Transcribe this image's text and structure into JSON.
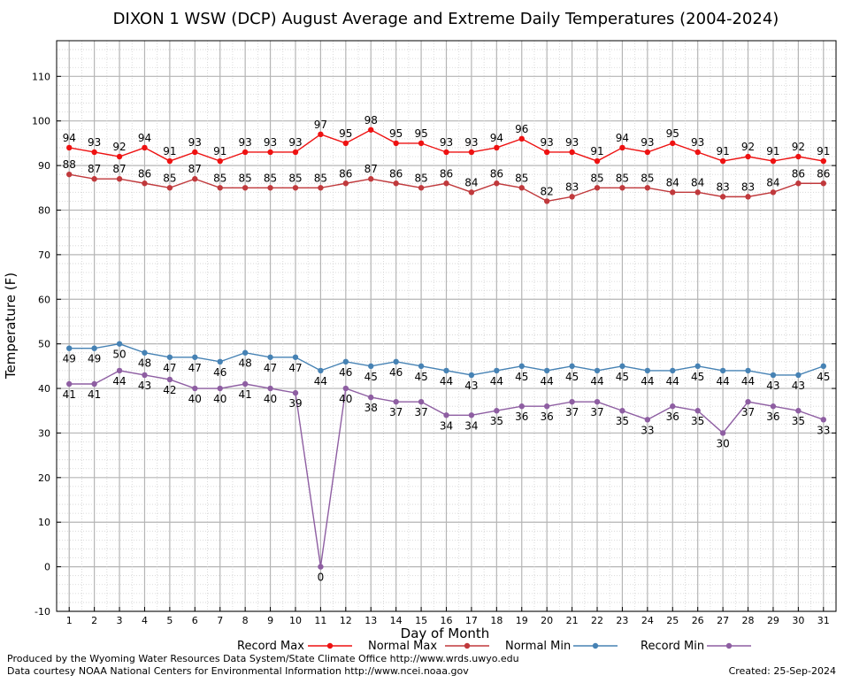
{
  "chart_data": {
    "type": "line",
    "title": "DIXON 1 WSW (DCP) August Average and Extreme Daily Temperatures (2004-2024)",
    "xlabel": "Day of Month",
    "ylabel": "Temperature (F)",
    "xlim": [
      0.5,
      31.5
    ],
    "ylim": [
      -10,
      118
    ],
    "y_ticks": [
      -10,
      0,
      10,
      20,
      30,
      40,
      50,
      60,
      70,
      80,
      90,
      100,
      110
    ],
    "x": [
      1,
      2,
      3,
      4,
      5,
      6,
      7,
      8,
      9,
      10,
      11,
      12,
      13,
      14,
      15,
      16,
      17,
      18,
      19,
      20,
      21,
      22,
      23,
      24,
      25,
      26,
      27,
      28,
      29,
      30,
      31
    ],
    "grid": true,
    "legend_position": "bottom",
    "series": [
      {
        "name": "Record Max",
        "color": "#ee1111",
        "label_position": "above",
        "values": [
          94,
          93,
          92,
          94,
          91,
          93,
          91,
          93,
          93,
          93,
          97,
          95,
          98,
          95,
          95,
          93,
          93,
          94,
          96,
          93,
          93,
          91,
          94,
          93,
          95,
          93,
          91,
          92,
          91,
          92,
          91
        ]
      },
      {
        "name": "Normal Max",
        "color": "#c0393c",
        "label_position": "above",
        "values": [
          88,
          87,
          87,
          86,
          85,
          87,
          85,
          85,
          85,
          85,
          85,
          86,
          87,
          86,
          85,
          86,
          84,
          86,
          85,
          82,
          83,
          85,
          85,
          85,
          84,
          84,
          83,
          83,
          84,
          86,
          86
        ]
      },
      {
        "name": "Normal Min",
        "color": "#4682b4",
        "label_position": "below",
        "values": [
          49,
          49,
          50,
          48,
          47,
          47,
          46,
          48,
          47,
          47,
          44,
          46,
          45,
          46,
          45,
          44,
          43,
          44,
          45,
          44,
          45,
          44,
          45,
          44,
          44,
          45,
          44,
          44,
          43,
          43,
          45
        ]
      },
      {
        "name": "Record Min",
        "color": "#8e5ea2",
        "label_position": "below",
        "values": [
          41,
          41,
          44,
          43,
          42,
          40,
          40,
          41,
          40,
          39,
          0,
          40,
          38,
          37,
          37,
          34,
          34,
          35,
          36,
          36,
          37,
          37,
          35,
          33,
          36,
          35,
          30,
          37,
          36,
          35,
          33
        ]
      }
    ]
  },
  "footer": {
    "produced_by": "Produced by the Wyoming Water Resources Data System/State Climate Office http://www.wrds.uwyo.edu",
    "data_courtesy": "Data courtesy NOAA National Centers for Environmental Information http://www.ncei.noaa.gov",
    "created": "Created:  25-Sep-2024"
  }
}
